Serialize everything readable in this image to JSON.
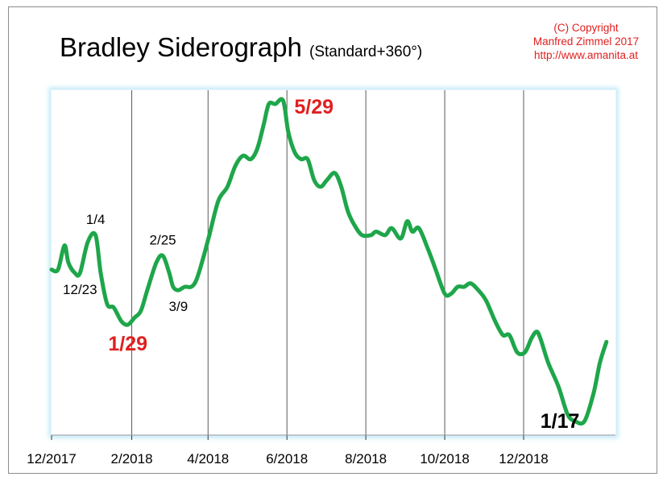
{
  "header": {
    "title": "Bradley Siderograph",
    "subtitle": "(Standard+360°)"
  },
  "copyright": {
    "line1": "(C) Copyright",
    "line2": "Manfred Zimmel 2017",
    "line3": "http://www.amanita.at"
  },
  "colors": {
    "line": "#1ea64a",
    "highlight": "#e02020",
    "plot_glow": "#bfe8f8",
    "grid": "#5a5a5a"
  },
  "chart_data": {
    "type": "line",
    "title": "Bradley Siderograph",
    "subtitle": "(Standard+360°)",
    "xlabel": "",
    "ylabel": "",
    "x_ticks": [
      "12/2017",
      "2/2018",
      "4/2018",
      "6/2018",
      "8/2018",
      "10/2018",
      "12/2018"
    ],
    "xlim": [
      "2017-12-01",
      "2019-02-10"
    ],
    "ylim": [
      0,
      100
    ],
    "grid": true,
    "series": [
      {
        "name": "",
        "points": [
          [
            "2017-12-01",
            48
          ],
          [
            "2017-12-06",
            48
          ],
          [
            "2017-12-11",
            55
          ],
          [
            "2017-12-14",
            50
          ],
          [
            "2017-12-19",
            47
          ],
          [
            "2017-12-23",
            47
          ],
          [
            "2017-12-29",
            56
          ],
          [
            "2018-01-04",
            58
          ],
          [
            "2018-01-08",
            47
          ],
          [
            "2018-01-13",
            38
          ],
          [
            "2018-01-18",
            37
          ],
          [
            "2018-01-24",
            33
          ],
          [
            "2018-01-29",
            32
          ],
          [
            "2018-02-03",
            34
          ],
          [
            "2018-02-08",
            36
          ],
          [
            "2018-02-13",
            42
          ],
          [
            "2018-02-20",
            50
          ],
          [
            "2018-02-25",
            52
          ],
          [
            "2018-03-02",
            47
          ],
          [
            "2018-03-05",
            43
          ],
          [
            "2018-03-09",
            42
          ],
          [
            "2018-03-14",
            43
          ],
          [
            "2018-03-19",
            43
          ],
          [
            "2018-03-23",
            45
          ],
          [
            "2018-03-28",
            51
          ],
          [
            "2018-04-02",
            58
          ],
          [
            "2018-04-09",
            68
          ],
          [
            "2018-04-16",
            72
          ],
          [
            "2018-04-22",
            78
          ],
          [
            "2018-04-28",
            81
          ],
          [
            "2018-05-04",
            80
          ],
          [
            "2018-05-09",
            83
          ],
          [
            "2018-05-14",
            90
          ],
          [
            "2018-05-18",
            96
          ],
          [
            "2018-05-23",
            96
          ],
          [
            "2018-05-29",
            97
          ],
          [
            "2018-06-02",
            88
          ],
          [
            "2018-06-07",
            82
          ],
          [
            "2018-06-12",
            80
          ],
          [
            "2018-06-17",
            80
          ],
          [
            "2018-06-22",
            74
          ],
          [
            "2018-06-27",
            72
          ],
          [
            "2018-07-02",
            74
          ],
          [
            "2018-07-08",
            76
          ],
          [
            "2018-07-13",
            72
          ],
          [
            "2018-07-18",
            65
          ],
          [
            "2018-07-23",
            61
          ],
          [
            "2018-07-29",
            58
          ],
          [
            "2018-08-05",
            58
          ],
          [
            "2018-08-09",
            59
          ],
          [
            "2018-08-16",
            58
          ],
          [
            "2018-08-21",
            60
          ],
          [
            "2018-08-28",
            57
          ],
          [
            "2018-09-02",
            62
          ],
          [
            "2018-09-06",
            59
          ],
          [
            "2018-09-11",
            60
          ],
          [
            "2018-09-18",
            54
          ],
          [
            "2018-09-24",
            48
          ],
          [
            "2018-10-01",
            41
          ],
          [
            "2018-10-06",
            41
          ],
          [
            "2018-10-11",
            43
          ],
          [
            "2018-10-16",
            43
          ],
          [
            "2018-10-21",
            44
          ],
          [
            "2018-10-27",
            42
          ],
          [
            "2018-11-02",
            39
          ],
          [
            "2018-11-09",
            33
          ],
          [
            "2018-11-15",
            29
          ],
          [
            "2018-11-20",
            29
          ],
          [
            "2018-11-26",
            24
          ],
          [
            "2018-12-02",
            24
          ],
          [
            "2018-12-07",
            28
          ],
          [
            "2018-12-11",
            30
          ],
          [
            "2018-12-14",
            28
          ],
          [
            "2018-12-20",
            21
          ],
          [
            "2018-12-28",
            14
          ],
          [
            "2019-01-04",
            6
          ],
          [
            "2019-01-10",
            4
          ],
          [
            "2019-01-17",
            4
          ],
          [
            "2019-01-24",
            12
          ],
          [
            "2019-01-29",
            21
          ],
          [
            "2019-02-03",
            27
          ]
        ]
      }
    ],
    "annotations": [
      {
        "text": "12/23",
        "x": "2017-12-23",
        "y": 47,
        "position": "below",
        "color": "#000000",
        "bold": false
      },
      {
        "text": "1/4",
        "x": "2018-01-04",
        "y": 58,
        "position": "above",
        "color": "#000000",
        "bold": false
      },
      {
        "text": "1/29",
        "x": "2018-01-29",
        "y": 32,
        "position": "below",
        "color": "#e02020",
        "bold": true
      },
      {
        "text": "2/25",
        "x": "2018-02-25",
        "y": 52,
        "position": "above",
        "color": "#000000",
        "bold": false
      },
      {
        "text": "3/9",
        "x": "2018-03-09",
        "y": 42,
        "position": "below",
        "color": "#000000",
        "bold": false
      },
      {
        "text": "5/29",
        "x": "2018-05-29",
        "y": 97,
        "position": "right",
        "color": "#e02020",
        "bold": true
      },
      {
        "text": "1/17",
        "x": "2019-01-17",
        "y": 4,
        "position": "left",
        "color": "#000000",
        "bold": true
      }
    ]
  }
}
